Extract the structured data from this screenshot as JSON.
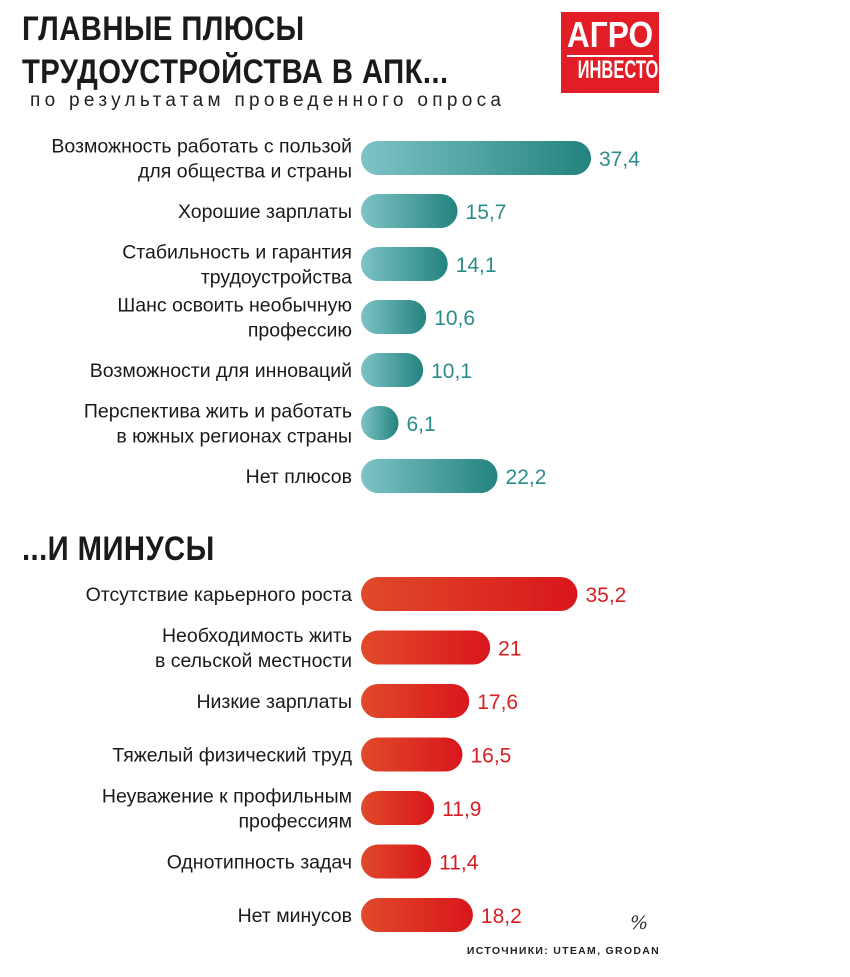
{
  "title_lines": [
    "ГЛАВНЫЕ ПЛЮСЫ",
    "ТРУДОУСТРОЙСТВА В АПК..."
  ],
  "subtitle": "по результатам проведенного опроса",
  "logo": {
    "line1": "АГРО",
    "line2": "ИНВЕСТОР",
    "color": "#e21d26"
  },
  "section2_title": "...И МИНУСЫ",
  "unit": "%",
  "source": "ИСТОЧНИКИ: UTEAM, GRODAN",
  "chart_data": [
    {
      "type": "bar",
      "orientation": "horizontal",
      "title": "ГЛАВНЫЕ ПЛЮСЫ ТРУДОУСТРОЙСТВА В АПК...",
      "color_start": "#7ec3c6",
      "color_end": "#23837e",
      "value_color": "#2a8c8a",
      "categories": [
        [
          "Возможность работать с пользой",
          "для общества и страны"
        ],
        [
          "Хорошие зарплаты"
        ],
        [
          "Стабильность и гарантия",
          "трудоустройства"
        ],
        [
          "Шанс освоить необычную",
          "профессию"
        ],
        [
          "Возможности для инноваций"
        ],
        [
          "Перспектива жить и работать",
          "в южных регионах страны"
        ],
        [
          "Нет плюсов"
        ]
      ],
      "values": [
        37.4,
        15.7,
        14.1,
        10.6,
        10.1,
        6.1,
        22.2
      ],
      "value_labels": [
        "37,4",
        "15,7",
        "14,1",
        "10,6",
        "10,1",
        "6,1",
        "22,2"
      ]
    },
    {
      "type": "bar",
      "orientation": "horizontal",
      "title": "...И МИНУСЫ",
      "color_start": "#e04a2a",
      "color_end": "#d9161c",
      "value_color": "#d81e22",
      "categories": [
        [
          "Отсутствие карьерного роста"
        ],
        [
          "Необходимость жить",
          "в сельской местности"
        ],
        [
          "Низкие зарплаты"
        ],
        [
          "Тяжелый физический труд"
        ],
        [
          "Неуважение к профильным",
          "профессиям"
        ],
        [
          "Однотипность задач"
        ],
        [
          "Нет минусов"
        ]
      ],
      "values": [
        35.2,
        21,
        17.6,
        16.5,
        11.9,
        11.4,
        18.2
      ],
      "value_labels": [
        "35,2",
        "21",
        "17,6",
        "16,5",
        "11,9",
        "11,4",
        "18,2"
      ]
    }
  ]
}
